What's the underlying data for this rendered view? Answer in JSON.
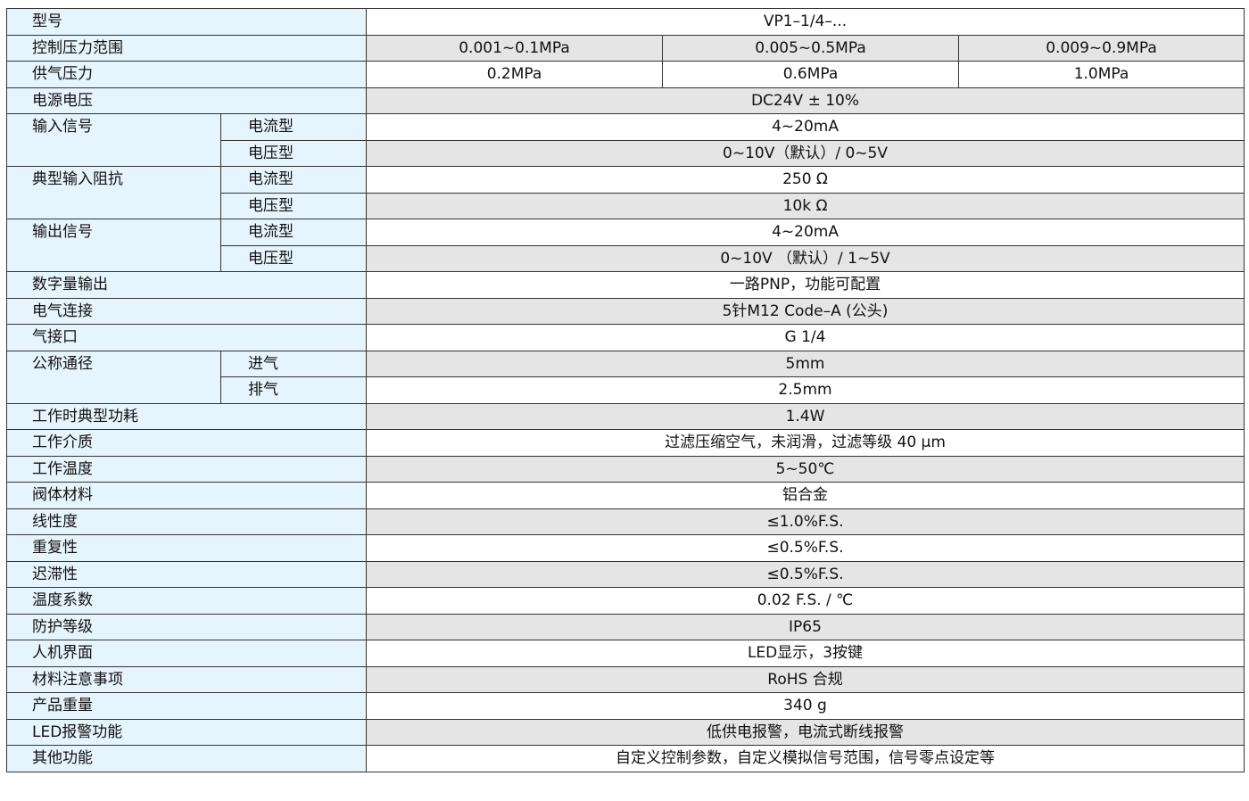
{
  "colors": {
    "label_bg": "#e6f4fd",
    "stripe_bg": "#e5e5e5",
    "border": "#333333"
  },
  "rows": [
    {
      "label": "型号",
      "values": [
        "VP1–1/4–..."
      ]
    },
    {
      "label": "控制压力范围",
      "values": [
        "0.001~0.1MPa",
        "0.005~0.5MPa",
        "0.009~0.9MPa"
      ]
    },
    {
      "label": "供气压力",
      "values": [
        "0.2MPa",
        "0.6MPa",
        "1.0MPa"
      ]
    },
    {
      "label": "电源电压",
      "values": [
        "DC24V ± 10%"
      ]
    },
    {
      "label": "输入信号",
      "subs": [
        {
          "label": "电流型",
          "value": "4~20mA"
        },
        {
          "label": "电压型",
          "value": "0~10V（默认）/ 0~5V"
        }
      ]
    },
    {
      "label": "典型输入阻抗",
      "subs": [
        {
          "label": "电流型",
          "value": "250 Ω"
        },
        {
          "label": "电压型",
          "value": "10k Ω"
        }
      ]
    },
    {
      "label": "输出信号",
      "subs": [
        {
          "label": "电流型",
          "value": "4~20mA"
        },
        {
          "label": "电压型",
          "value": "0~10V （默认）/ 1~5V"
        }
      ]
    },
    {
      "label": "数字量输出",
      "values": [
        "一路PNP，功能可配置"
      ]
    },
    {
      "label": "电气连接",
      "values": [
        "5针M12 Code–A (公头)"
      ]
    },
    {
      "label": "气接口",
      "values": [
        "G 1/4"
      ]
    },
    {
      "label": "公称通径",
      "subs": [
        {
          "label": "进气",
          "value": "5mm"
        },
        {
          "label": "排气",
          "value": "2.5mm"
        }
      ]
    },
    {
      "label": "工作时典型功耗",
      "values": [
        "1.4W"
      ]
    },
    {
      "label": "工作介质",
      "values": [
        "过滤压缩空气，未润滑，过滤等级 40 μm"
      ]
    },
    {
      "label": "工作温度",
      "values": [
        "5~50℃"
      ]
    },
    {
      "label": "阀体材料",
      "values": [
        "铝合金"
      ]
    },
    {
      "label": "线性度",
      "values": [
        "≤1.0%F.S."
      ]
    },
    {
      "label": "重复性",
      "values": [
        "≤0.5%F.S."
      ]
    },
    {
      "label": "迟滞性",
      "values": [
        "≤0.5%F.S."
      ]
    },
    {
      "label": "温度系数",
      "values": [
        "0.02 F.S. / ℃"
      ]
    },
    {
      "label": "防护等级",
      "values": [
        "IP65"
      ]
    },
    {
      "label": "人机界面",
      "values": [
        "LED显示，3按键"
      ]
    },
    {
      "label": "材料注意事项",
      "values": [
        "RoHS 合规"
      ]
    },
    {
      "label": "产品重量",
      "values": [
        "340 g"
      ]
    },
    {
      "label": "LED报警功能",
      "values": [
        "低供电报警，电流式断线报警"
      ]
    },
    {
      "label": "其他功能",
      "values": [
        "自定义控制参数，自定义模拟信号范围，信号零点设定等"
      ]
    }
  ]
}
